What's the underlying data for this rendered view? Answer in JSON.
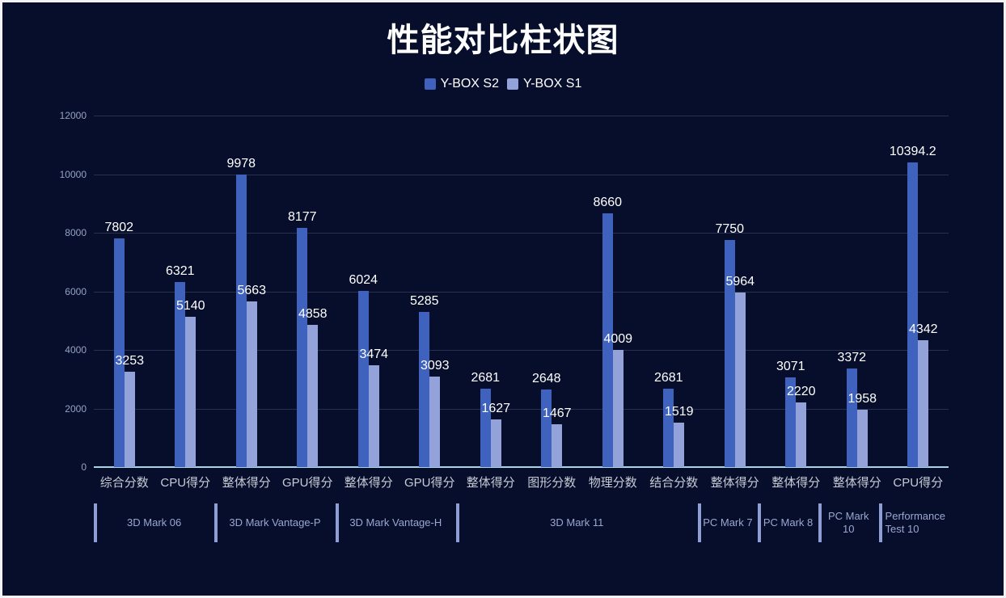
{
  "title": "性能对比柱状图",
  "colors": {
    "background": "#060e2b",
    "border": "#f3f3f5",
    "title": "#ffffff",
    "series_s2": "#3e62be",
    "series_s1": "#93a2d8",
    "grid_line": "#27304e",
    "axis_line": "#a6d5e8",
    "tick_label": "#95a3c2",
    "category_label": "#c6cbd6",
    "group_label": "#9aa7cf",
    "group_separator": "#8e9ed4",
    "value_label": "#ffffff"
  },
  "chart_data": {
    "type": "bar",
    "title": "性能对比柱状图",
    "xlabel": "",
    "ylabel": "",
    "ylim": [
      0,
      12000
    ],
    "yticks": [
      0,
      2000,
      4000,
      6000,
      8000,
      10000,
      12000
    ],
    "grid": true,
    "legend_position": "top",
    "categories": [
      "综合分数",
      "CPU得分",
      "整体得分",
      "GPU得分",
      "整体得分",
      "GPU得分",
      "整体得分",
      "图形分数",
      "物理分数",
      "结合分数",
      "整体得分",
      "整体得分",
      "整体得分",
      "CPU得分"
    ],
    "groups": [
      {
        "label": "3D Mark 06",
        "span": 2
      },
      {
        "label": "3D Mark  Vantage-P",
        "span": 2
      },
      {
        "label": "3D Mark  Vantage-H",
        "span": 2
      },
      {
        "label": "3D Mark 11",
        "span": 4
      },
      {
        "label": "PC Mark 7",
        "span": 1
      },
      {
        "label": "PC Mark 8",
        "span": 1
      },
      {
        "label": "PC Mark 10",
        "span": 1
      },
      {
        "label": "Performance Test 10",
        "span": 1
      }
    ],
    "series": [
      {
        "name": "Y-BOX S2",
        "color": "#3e62be",
        "values": [
          7802,
          6321,
          9978,
          8177,
          6024,
          5285,
          2681,
          2648,
          8660,
          2681,
          7750,
          3071,
          3372,
          10394.2
        ]
      },
      {
        "name": "Y-BOX S1",
        "color": "#93a2d8",
        "values": [
          3253,
          5140,
          5663,
          4858,
          3474,
          3093,
          1627,
          1467,
          4009,
          1519,
          5964,
          2220,
          1958,
          4342
        ]
      }
    ]
  }
}
